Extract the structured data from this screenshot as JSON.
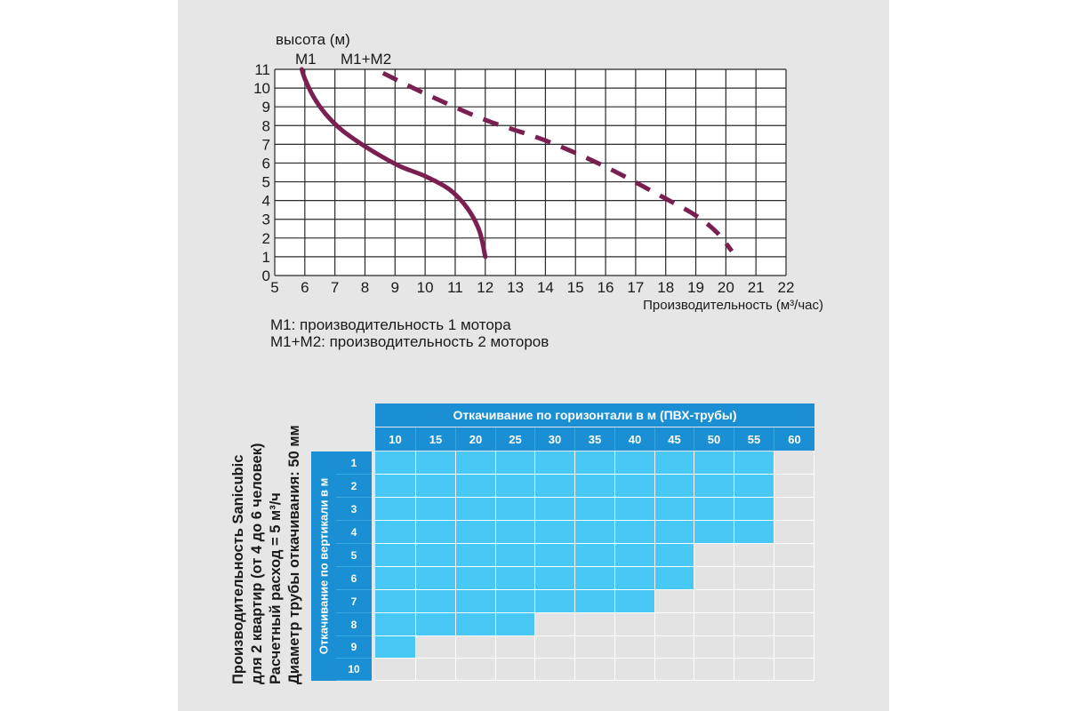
{
  "chart_data": [
    {
      "type": "line",
      "ylabel": "высота (м)",
      "xlabel": "Производительность (м³/час)",
      "x_ticks": [
        "5",
        "6",
        "7",
        "8",
        "9",
        "10",
        "11",
        "12",
        "13",
        "14",
        "15",
        "16",
        "17",
        "18",
        "19",
        "20",
        "21",
        "22"
      ],
      "y_ticks": [
        "0",
        "1",
        "2",
        "3",
        "4",
        "5",
        "6",
        "7",
        "8",
        "9",
        "10",
        "11"
      ],
      "xlim": [
        5,
        22
      ],
      "ylim": [
        0,
        11
      ],
      "grid": true,
      "series": [
        {
          "name": "M1",
          "style": "solid",
          "color": "#7a1f4f",
          "points": [
            [
              5.9,
              11.0
            ],
            [
              6.0,
              10.5
            ],
            [
              6.3,
              9.5
            ],
            [
              6.7,
              8.6
            ],
            [
              7.2,
              7.8
            ],
            [
              7.8,
              7.1
            ],
            [
              8.5,
              6.4
            ],
            [
              9.2,
              5.8
            ],
            [
              10.0,
              5.3
            ],
            [
              10.8,
              4.6
            ],
            [
              11.4,
              3.6
            ],
            [
              11.8,
              2.4
            ],
            [
              12.0,
              1.0
            ]
          ]
        },
        {
          "name": "M1+M2",
          "style": "dashed",
          "color": "#7a1f4f",
          "points": [
            [
              8.6,
              10.8
            ],
            [
              10.0,
              9.7
            ],
            [
              12.0,
              8.3
            ],
            [
              14.0,
              7.2
            ],
            [
              16.0,
              5.8
            ],
            [
              18.0,
              4.1
            ],
            [
              19.0,
              3.2
            ],
            [
              19.7,
              2.3
            ],
            [
              20.2,
              1.3
            ]
          ]
        }
      ],
      "notes": [
        "M1: производительность 1 мотора",
        "M1+M2: производительность 2 моторов"
      ]
    },
    {
      "type": "table",
      "side_title": [
        "Производительность Sanicubic",
        "для 2 квартир (от 4 до 6 человек)",
        "Расчетный расход = 5 м³/ч",
        "Диаметр трубы откачивания: 50 мм"
      ],
      "column_title": "Откачивание по горизонтали  в м  (ПВХ-трубы)",
      "row_title": "Откачивание по вертикали в м",
      "columns": [
        "10",
        "15",
        "20",
        "25",
        "30",
        "35",
        "40",
        "45",
        "50",
        "55",
        "60"
      ],
      "rows": [
        "1",
        "2",
        "3",
        "4",
        "5",
        "6",
        "7",
        "8",
        "9",
        "10"
      ],
      "available_columns_per_row": [
        10,
        10,
        10,
        10,
        8,
        8,
        7,
        4,
        1,
        0
      ],
      "colors": {
        "header": "#1a8fd3",
        "available": "#48c8f4",
        "unavailable": "#e3e3e3"
      }
    }
  ]
}
